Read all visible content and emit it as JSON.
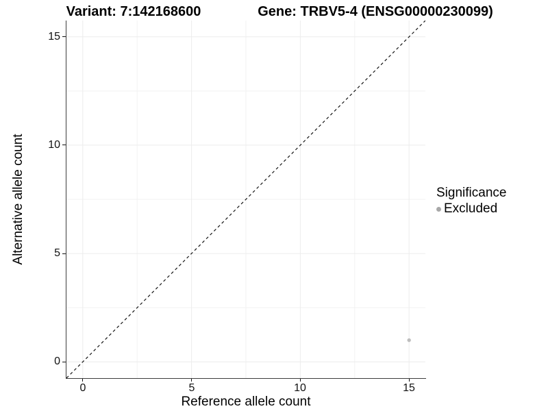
{
  "titles": {
    "variant": "Variant: 7:142168600",
    "gene": "Gene: TRBV5-4 (ENSG00000230099)"
  },
  "chart_data": {
    "type": "scatter",
    "xlabel": "Reference allele count",
    "ylabel": "Alternative allele count",
    "xlim": [
      -0.75,
      15.75
    ],
    "ylim": [
      -0.75,
      15.75
    ],
    "x_ticks": [
      0,
      5,
      10,
      15
    ],
    "y_ticks": [
      0,
      5,
      10,
      15
    ],
    "x_minor_ticks": [
      2.5,
      7.5,
      12.5
    ],
    "y_minor_ticks": [
      2.5,
      7.5,
      12.5
    ],
    "grid": true,
    "reference_line": {
      "kind": "identity y=x",
      "style": "dashed",
      "color": "#141414"
    },
    "series": [
      {
        "name": "Excluded",
        "points": [
          {
            "x": 15,
            "y": 1
          }
        ],
        "color": "#bdbdbd"
      }
    ],
    "legend": {
      "title": "Significance",
      "position": "right",
      "items": [
        {
          "label": "Excluded",
          "color": "#a8a8a8"
        }
      ]
    }
  },
  "style_colors": {
    "major_grid": "#ececec",
    "minor_grid": "#f2f2f2",
    "axis_line": "#3c3c3c",
    "tick": "#111111",
    "point_radius": 2.7
  }
}
